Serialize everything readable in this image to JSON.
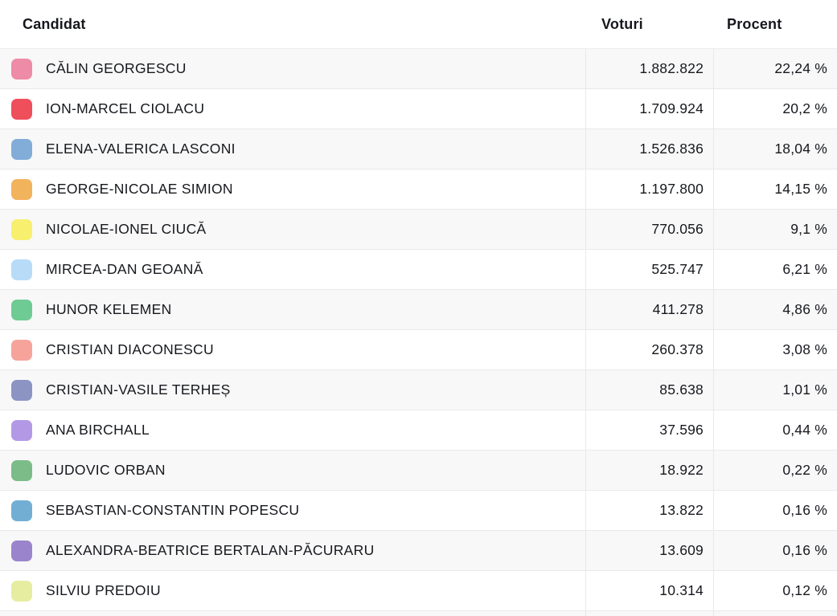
{
  "table": {
    "columns": [
      {
        "key": "candidate",
        "label": "Candidat"
      },
      {
        "key": "votes",
        "label": "Voturi"
      },
      {
        "key": "percent",
        "label": "Procent"
      }
    ],
    "rows": [
      {
        "name": "CĂLIN GEORGESCU",
        "votes": "1.882.822",
        "percent": "22,24 %",
        "color": "#ee8ba6"
      },
      {
        "name": "ION-MARCEL CIOLACU",
        "votes": "1.709.924",
        "percent": "20,2 %",
        "color": "#ef4e5b"
      },
      {
        "name": "ELENA-VALERICA LASCONI",
        "votes": "1.526.836",
        "percent": "18,04 %",
        "color": "#82add9"
      },
      {
        "name": "GEORGE-NICOLAE SIMION",
        "votes": "1.197.800",
        "percent": "14,15 %",
        "color": "#f2b35d"
      },
      {
        "name": "NICOLAE-IONEL CIUCĂ",
        "votes": "770.056",
        "percent": "9,1 %",
        "color": "#f8ef6f"
      },
      {
        "name": "MIRCEA-DAN GEOANĂ",
        "votes": "525.747",
        "percent": "6,21 %",
        "color": "#b8dcf7"
      },
      {
        "name": "HUNOR KELEMEN",
        "votes": "411.278",
        "percent": "4,86 %",
        "color": "#6fcb94"
      },
      {
        "name": "CRISTIAN DIACONESCU",
        "votes": "260.378",
        "percent": "3,08 %",
        "color": "#f6a39c"
      },
      {
        "name": "CRISTIAN-VASILE TERHEȘ",
        "votes": "85.638",
        "percent": "1,01 %",
        "color": "#8c94c4"
      },
      {
        "name": "ANA BIRCHALL",
        "votes": "37.596",
        "percent": "0,44 %",
        "color": "#b399e5"
      },
      {
        "name": "LUDOVIC ORBAN",
        "votes": "18.922",
        "percent": "0,22 %",
        "color": "#7cbc89"
      },
      {
        "name": "SEBASTIAN-CONSTANTIN POPESCU",
        "votes": "13.822",
        "percent": "0,16 %",
        "color": "#72aed4"
      },
      {
        "name": "ALEXANDRA-BEATRICE BERTALAN-PĂCURARU",
        "votes": "13.609",
        "percent": "0,16 %",
        "color": "#9a85cc"
      },
      {
        "name": "SILVIU PREDOIU",
        "votes": "10.314",
        "percent": "0,12 %",
        "color": "#e6eda1"
      }
    ],
    "theme": {
      "row_alt_background": "#f8f8f8",
      "row_background": "#ffffff",
      "border_color": "#e9e9e9",
      "text_color": "#16181d"
    }
  }
}
